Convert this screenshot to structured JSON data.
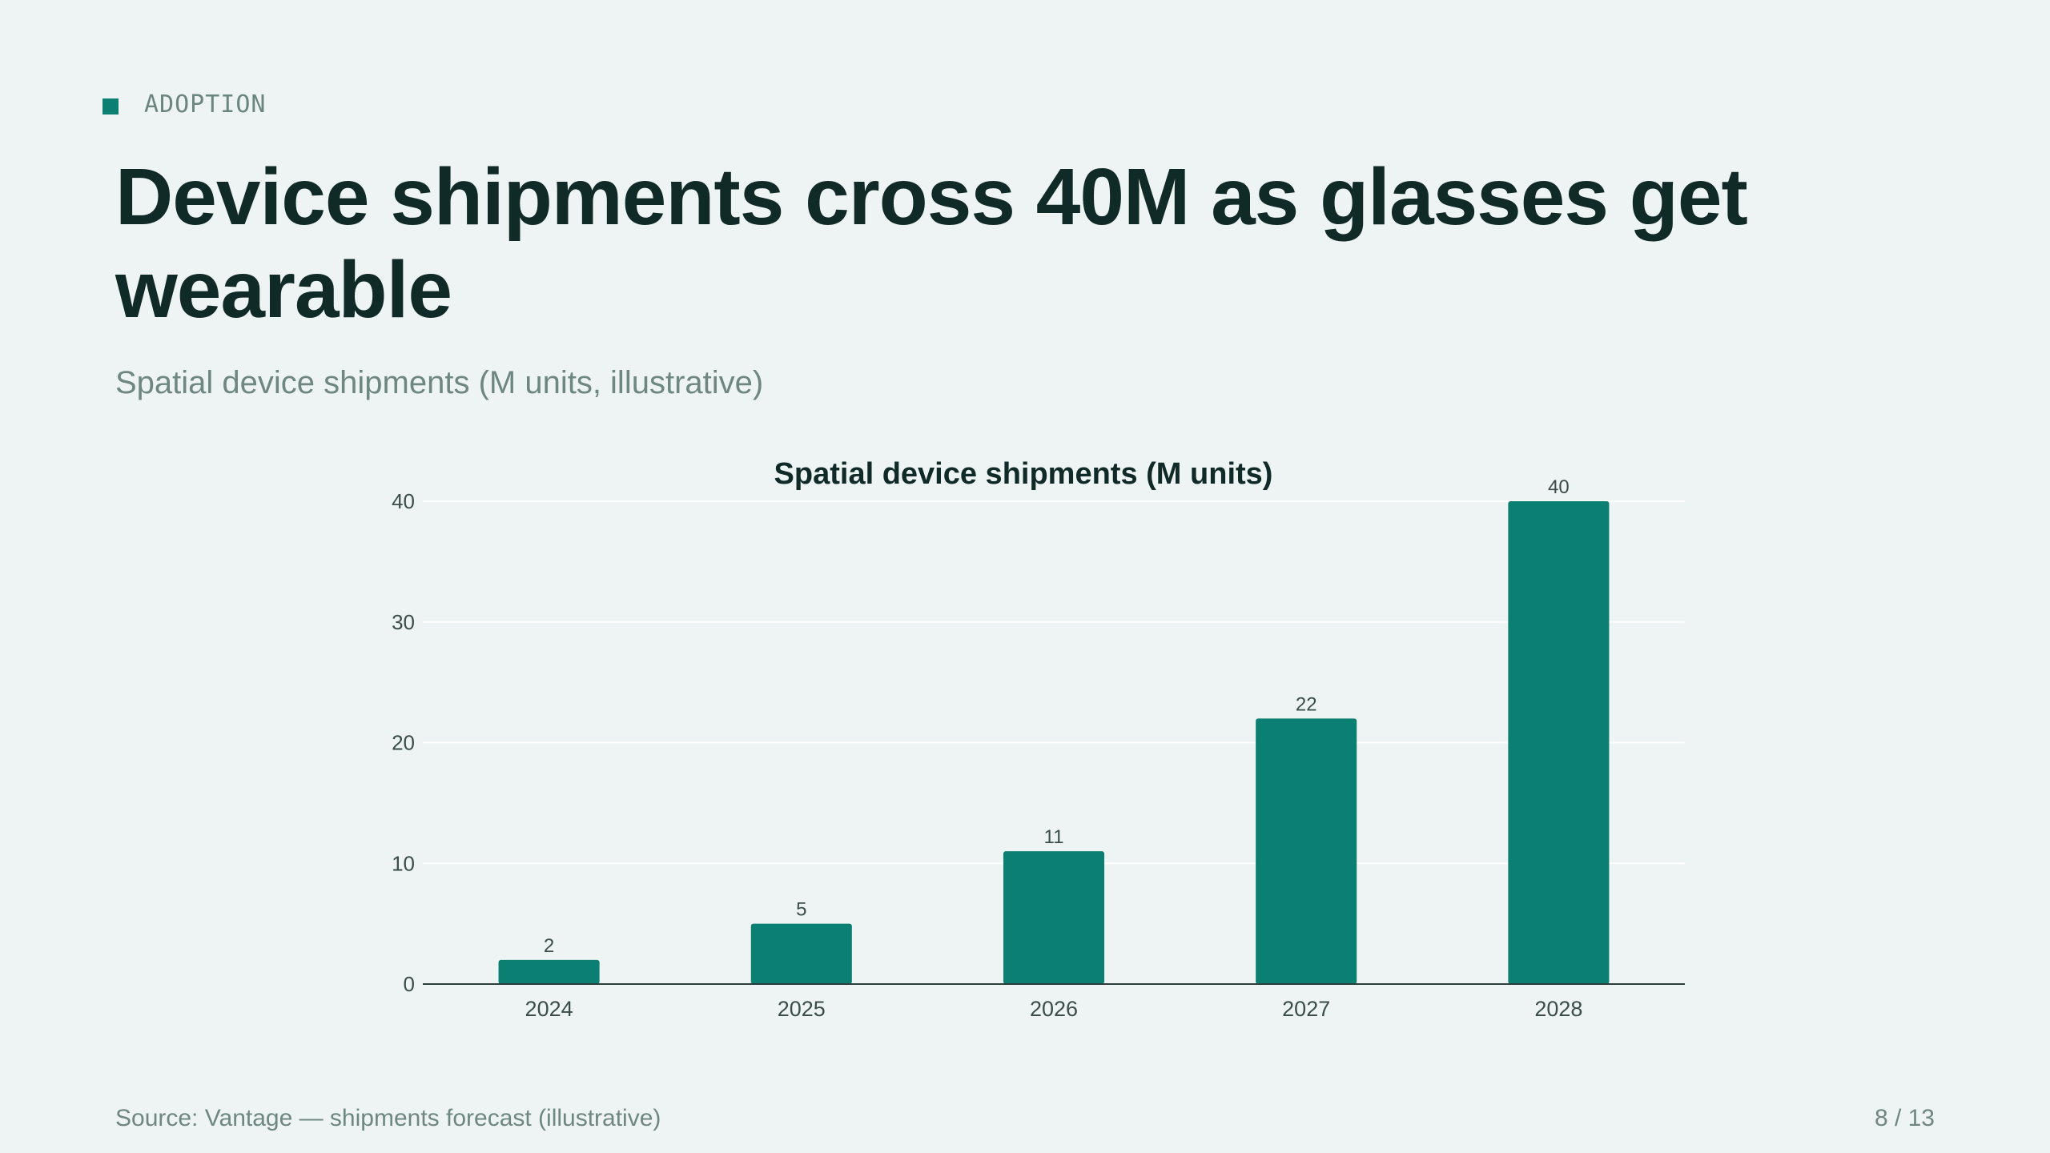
{
  "eyebrow": {
    "label": "ADOPTION",
    "icon": "square-marker-icon"
  },
  "header": {
    "title": "Device shipments cross 40M as glasses get wearable",
    "subtitle": "Spatial device shipments (M units, illustrative)"
  },
  "chart_data": {
    "type": "bar",
    "title": "Spatial device shipments (M units)",
    "categories": [
      "2024",
      "2025",
      "2026",
      "2027",
      "2028"
    ],
    "values": [
      2,
      5,
      11,
      22,
      40
    ],
    "data_labels": [
      "2",
      "5",
      "11",
      "22",
      "40"
    ],
    "yticks": [
      0,
      10,
      20,
      30,
      40
    ],
    "ylim": [
      0,
      40
    ],
    "xlabel": "",
    "ylabel": "",
    "grid": true,
    "bar_color": "#0b7f71"
  },
  "footer": {
    "source": "Source: Vantage — shipments forecast (illustrative)",
    "page": "8 / 13"
  },
  "colors": {
    "accent": "#0b7f71",
    "background": "#eef4f3",
    "title": "#0f2a27",
    "muted": "#6e8783"
  }
}
